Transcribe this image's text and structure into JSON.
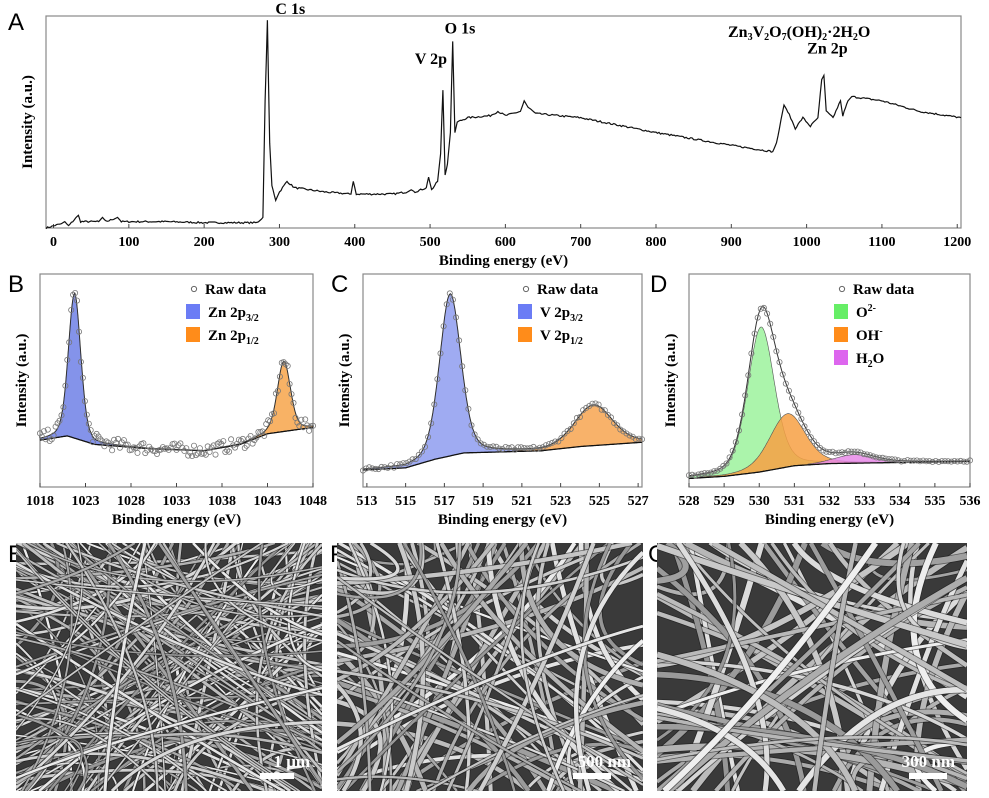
{
  "panel_labels": [
    "A",
    "B",
    "C",
    "D",
    "E",
    "F",
    "G"
  ],
  "chart_data": [
    {
      "id": "A",
      "type": "line",
      "title": "",
      "xlabel": "Binding energy (eV)",
      "ylabel": "Intensity (a.u.)",
      "xlim": [
        -10,
        1205
      ],
      "ylim": [
        0,
        100
      ],
      "xticks": [
        0,
        100,
        200,
        300,
        400,
        500,
        600,
        700,
        800,
        900,
        1000,
        1100,
        1200
      ],
      "annotations": [
        {
          "text": "C 1s",
          "x": 284
        },
        {
          "text": "O 1s",
          "x": 530
        },
        {
          "text": "V 2p",
          "x": 517
        },
        {
          "text": "Zn 2p",
          "x": 1022
        }
      ],
      "compound": {
        "base": "Zn",
        "sub1": "3",
        "v": "V",
        "sub2": "2",
        "o": "O",
        "sub3": "7",
        "oh": "(OH)",
        "sub4": "2",
        "dot": "·2H",
        "sub5": "2",
        "end": "O"
      },
      "series": [
        {
          "x": [
            -10,
            0,
            10,
            15,
            20,
            33,
            36,
            60,
            65,
            70,
            85,
            90,
            150,
            200,
            270,
            278,
            281,
            284,
            287,
            290,
            295,
            300,
            310,
            320,
            340,
            360,
            395,
            398,
            402,
            450,
            470,
            475,
            480,
            495,
            498,
            502,
            510,
            514,
            517,
            520,
            523,
            527,
            530,
            533,
            536,
            550,
            580,
            590,
            600,
            620,
            625,
            630,
            640,
            700,
            800,
            900,
            955,
            960,
            970,
            975,
            985,
            995,
            1005,
            1015,
            1020,
            1023,
            1026,
            1035,
            1045,
            1048,
            1055,
            1060,
            1100,
            1150,
            1205
          ],
          "y": [
            0,
            1,
            2,
            3,
            1,
            6,
            3,
            3,
            5,
            3,
            5,
            3,
            3,
            2.5,
            2.5,
            5,
            60,
            98,
            40,
            20,
            13,
            17,
            22,
            19,
            18,
            17,
            16,
            22,
            16,
            16,
            17,
            18,
            17,
            19,
            24,
            18,
            22,
            35,
            65,
            25,
            30,
            45,
            88,
            45,
            50,
            52,
            53,
            55,
            53,
            55,
            60,
            57,
            54,
            52,
            45,
            39,
            36,
            40,
            58,
            55,
            47,
            52,
            48,
            52,
            70,
            72,
            55,
            52,
            60,
            53,
            60,
            62,
            60,
            55,
            52
          ]
        }
      ]
    },
    {
      "id": "B",
      "type": "area",
      "xlabel": "Binding energy (eV)",
      "ylabel": "Intensity (a.u.)",
      "xlim": [
        1018,
        1048
      ],
      "ylim": [
        0,
        100
      ],
      "xticks": [
        1018,
        1023,
        1028,
        1033,
        1038,
        1043,
        1048
      ],
      "legend": {
        "placement": "top-right",
        "raw": "Raw data",
        "items": [
          {
            "name": "Zn 2p",
            "sub": "3/2",
            "color": "#6b7cf5"
          },
          {
            "name": "Zn 2p",
            "sub": "1/2",
            "color": "#ff8c1a"
          }
        ]
      },
      "baseline": [
        [
          1018,
          22
        ],
        [
          1021,
          24
        ],
        [
          1024,
          20
        ],
        [
          1030,
          18
        ],
        [
          1036,
          17
        ],
        [
          1040,
          20
        ],
        [
          1043,
          25
        ],
        [
          1048,
          28
        ]
      ],
      "peaks": [
        {
          "center": 1021.8,
          "height": 68,
          "fwhm": 1.6,
          "fill": "#6f80e6"
        },
        {
          "center": 1044.8,
          "height": 33,
          "fwhm": 1.7,
          "fill": "#f7a54a"
        }
      ],
      "noise": 3
    },
    {
      "id": "C",
      "type": "area",
      "xlabel": "Binding energy (eV)",
      "ylabel": "Intensity (a.u.)",
      "xlim": [
        512.8,
        527.2
      ],
      "ylim": [
        0,
        100
      ],
      "xticks": [
        513,
        515,
        517,
        519,
        521,
        523,
        525,
        527
      ],
      "legend": {
        "placement": "top-right",
        "raw": "Raw data",
        "items": [
          {
            "name": "V 2p",
            "sub": "3/2",
            "color": "#6b7cf5"
          },
          {
            "name": "V 2p",
            "sub": "1/2",
            "color": "#ff8c1a"
          }
        ]
      },
      "baseline": [
        [
          512.8,
          8
        ],
        [
          515,
          9
        ],
        [
          516.5,
          13
        ],
        [
          518,
          16
        ],
        [
          522,
          17
        ],
        [
          524,
          19
        ],
        [
          527.2,
          21
        ]
      ],
      "peaks": [
        {
          "center": 517.3,
          "height": 76,
          "fwhm": 1.3,
          "fill": "#8e9cf0"
        },
        {
          "center": 524.7,
          "height": 19,
          "fwhm": 2.3,
          "fill": "#f7a550"
        }
      ],
      "noise": 0.8
    },
    {
      "id": "D",
      "type": "area",
      "xlabel": "Binding energy (eV)",
      "ylabel": "Intensity (a.u.)",
      "xlim": [
        528,
        536
      ],
      "ylim": [
        0,
        100
      ],
      "xticks": [
        528,
        529,
        530,
        531,
        532,
        533,
        534,
        535,
        536
      ],
      "legend": {
        "placement": "top-right",
        "raw": "Raw data",
        "items": [
          {
            "name": "O",
            "sup": "2-",
            "color": "#66ee66"
          },
          {
            "name": "OH",
            "sup": "-",
            "color": "#ff8c1a"
          },
          {
            "name": "H",
            "sub": "2",
            "tail": "O",
            "color": "#dd66ee"
          }
        ]
      },
      "baseline": [
        [
          528,
          4
        ],
        [
          529,
          5
        ],
        [
          530,
          7
        ],
        [
          531,
          10
        ],
        [
          532,
          11
        ],
        [
          536,
          12
        ]
      ],
      "peaks": [
        {
          "center": 530.05,
          "height": 68,
          "fwhm": 0.9,
          "fill": "#9cf29c"
        },
        {
          "center": 530.8,
          "height": 25,
          "fwhm": 1.2,
          "fill": "#f7a043"
        },
        {
          "center": 532.7,
          "height": 4,
          "fwhm": 1.3,
          "fill": "#e88ae8"
        }
      ],
      "noise": 0.4
    }
  ],
  "sem_images": [
    {
      "id": "E",
      "scale_bar": "1 μm"
    },
    {
      "id": "F",
      "scale_bar": "500 nm"
    },
    {
      "id": "G",
      "scale_bar": "300 nm"
    }
  ]
}
